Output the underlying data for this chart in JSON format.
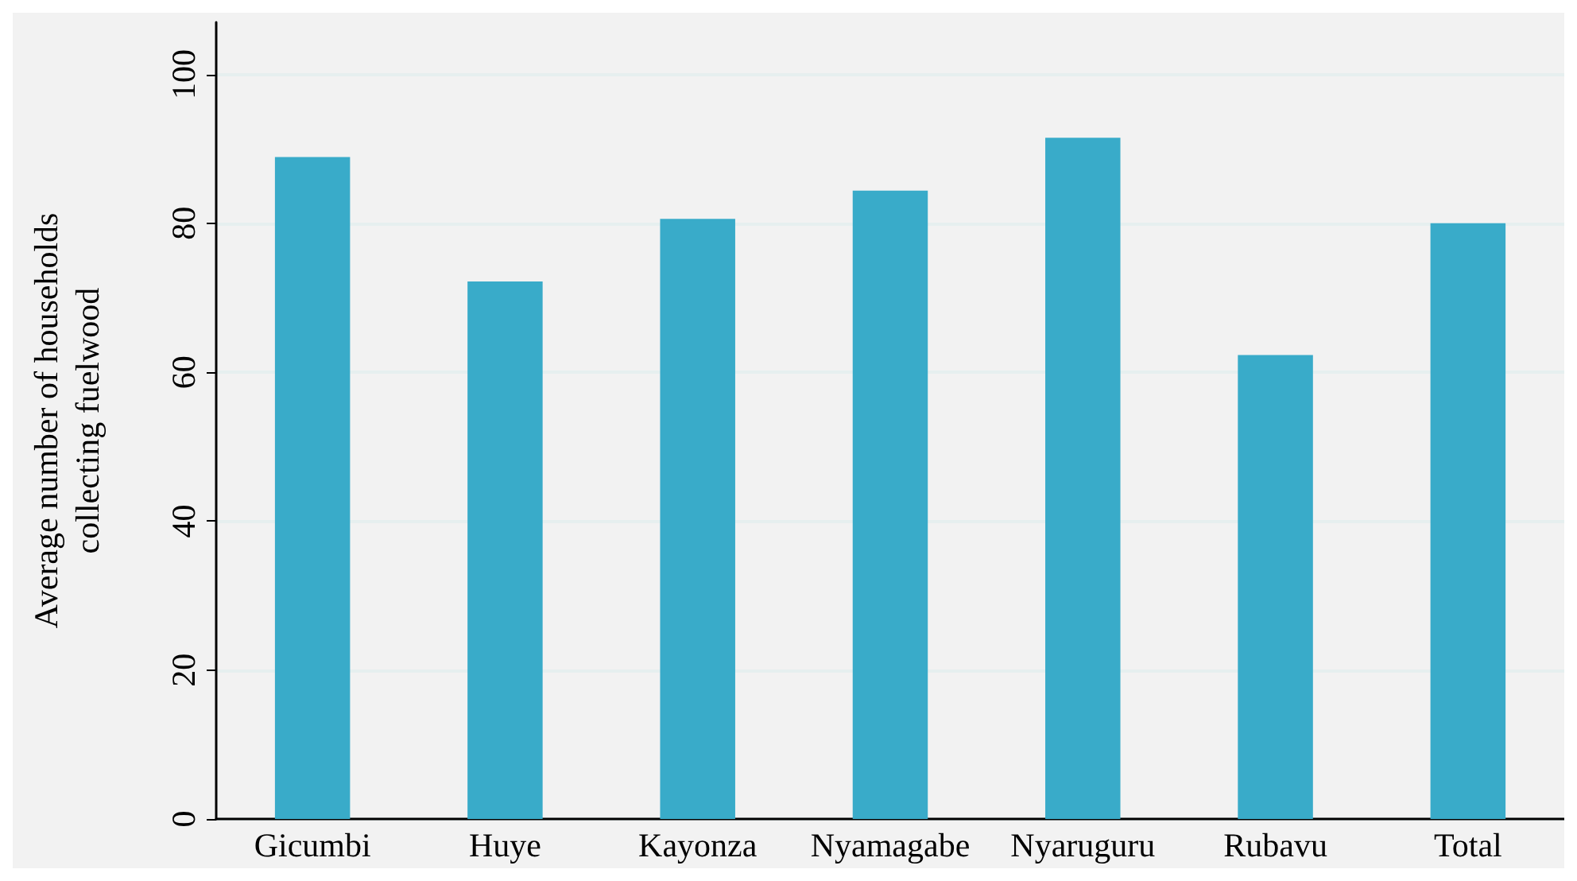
{
  "chart_data": {
    "type": "bar",
    "ylabel": "Average number of households\ncollecting fuelwood",
    "categories": [
      "Gicumbi",
      "Huye",
      "Kayonza",
      "Nyamagabe",
      "Nyaruguru",
      "Rubavu",
      "Total"
    ],
    "values": [
      88.9,
      72.2,
      80.6,
      84.4,
      91.5,
      62.3,
      80.0
    ],
    "color": "#39abc9",
    "ylim": [
      0,
      107
    ],
    "yticks": [
      0,
      20,
      40,
      60,
      80,
      100
    ],
    "grid": "y"
  }
}
